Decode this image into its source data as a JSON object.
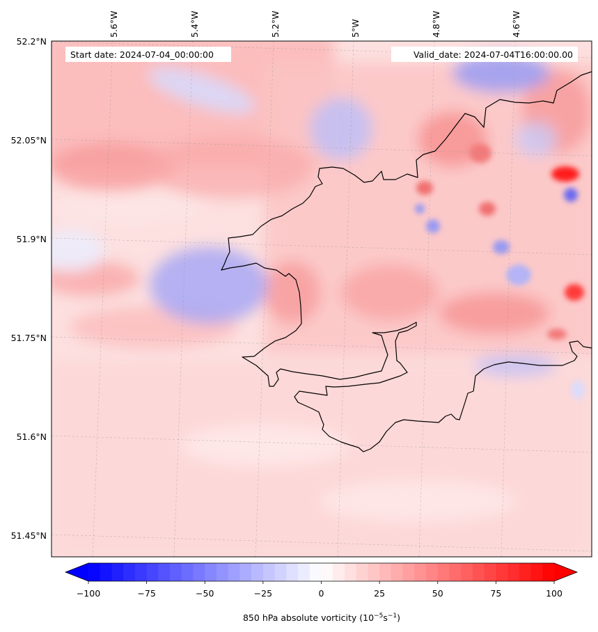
{
  "map": {
    "start_date": "Start date: 2024-07-04_00:00:00",
    "valid_date": "Valid_date: 2024-07-04T16:00:00.00",
    "lon_labels": [
      "5.6°W",
      "5.4°W",
      "5.2°W",
      "5°W",
      "4.8°W",
      "4.6°W"
    ],
    "lat_labels": [
      "52.2°N",
      "52.05°N",
      "51.9°N",
      "51.75°N",
      "51.6°N",
      "51.45°N"
    ]
  },
  "colorbar": {
    "title_prefix": "850 hPa absolute vorticity (10",
    "title_exp1": "−5",
    "title_mid": "s",
    "title_exp2": "−1",
    "title_suffix": ")",
    "ticks": [
      {
        "value": -100,
        "label": "−100"
      },
      {
        "value": -75,
        "label": "−75"
      },
      {
        "value": -50,
        "label": "−50"
      },
      {
        "value": -25,
        "label": "−25"
      },
      {
        "value": 0,
        "label": "0"
      },
      {
        "value": 25,
        "label": "25"
      },
      {
        "value": 50,
        "label": "50"
      },
      {
        "value": 75,
        "label": "75"
      },
      {
        "value": 100,
        "label": "100"
      }
    ],
    "min": -100,
    "max": 100,
    "levels": 40,
    "cmap": "bwr"
  }
}
